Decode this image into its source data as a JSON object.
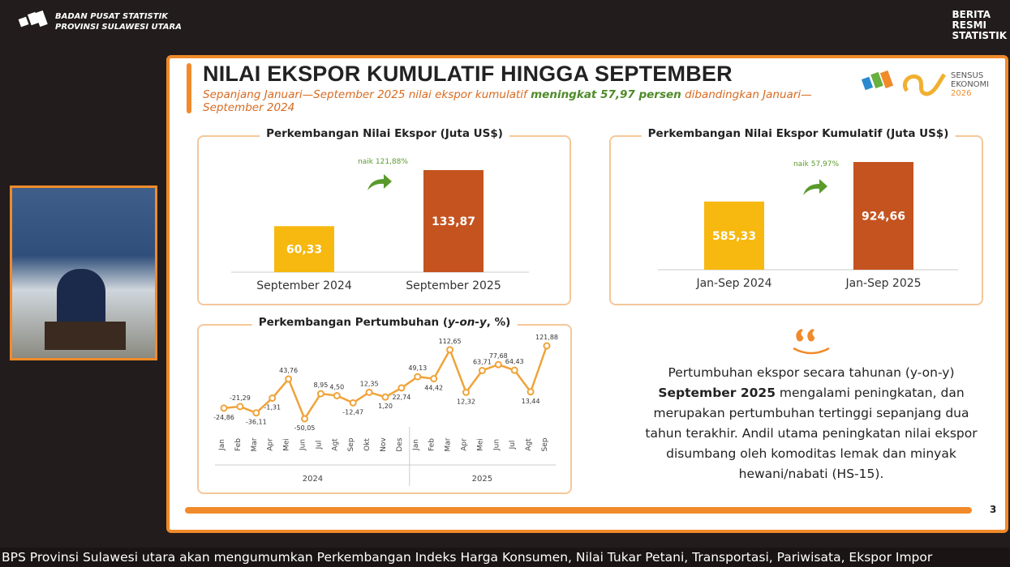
{
  "header": {
    "org": [
      "BADAN PUSAT STATISTIK",
      "PROVINSI SULAWESI UTARA"
    ],
    "brand": [
      "BERITA",
      "RESMI",
      "STATISTIK"
    ]
  },
  "slide": {
    "title": "NILAI EKSPOR KUMULATIF HINGGA SEPTEMBER",
    "subtitle": [
      "Sepanjang Januari—September 2025 nilai ekspor kumulatif",
      "meningkat 57,97 persen",
      "dibandingkan Januari—September 2024"
    ],
    "logo_text": [
      "SENSUS",
      "EKONOMI",
      "2026"
    ],
    "page_number": "3"
  },
  "charts": [
    {
      "type": "bar",
      "title": "Perkembangan Nilai Ekspor (Juta US$)",
      "categories": [
        "September 2024",
        "September 2025"
      ],
      "values": [
        60.33,
        133.87
      ],
      "value_labels": [
        "60,33",
        "133,87"
      ],
      "colors": [
        "#f7b80f",
        "#c4531f"
      ],
      "annotation": "naik 121,88%"
    },
    {
      "type": "bar",
      "title": "Perkembangan Nilai Ekspor Kumulatif (Juta US$)",
      "categories": [
        "Jan-Sep 2024",
        "Jan-Sep 2025"
      ],
      "values": [
        585.33,
        924.66
      ],
      "value_labels": [
        "585,33",
        "924,66"
      ],
      "colors": [
        "#f7b80f",
        "#c4531f"
      ],
      "annotation": "naik 57,97%"
    },
    {
      "type": "line",
      "title": [
        "Perkembangan Pertumbuhan (",
        "y-on-y",
        ", %)"
      ],
      "categories": [
        "Jan",
        "Feb",
        "Mar",
        "Apr",
        "Mei",
        "Jun",
        "Jul",
        "Agt",
        "Sep",
        "Okt",
        "Nov",
        "Des",
        "Jan",
        "Feb",
        "Mar",
        "Apr",
        "Mei",
        "Jun",
        "Jul",
        "Agt",
        "Sep"
      ],
      "years": [
        "2024",
        "2025"
      ],
      "values": [
        -24.86,
        -21.29,
        -36.11,
        -1.31,
        43.76,
        -50.05,
        8.95,
        4.5,
        -12.47,
        12.35,
        1.2,
        22.74,
        49.13,
        44.42,
        112.65,
        12.32,
        63.71,
        77.68,
        64.43,
        13.44,
        121.88
      ],
      "value_labels": [
        "-24,86",
        "-21,29",
        "-36,11",
        "-1,31",
        "43,76",
        "-50,05",
        "8,95",
        "4,50",
        "-12,47",
        "12,35",
        "1,20",
        "22,74",
        "49,13",
        "44,42",
        "112,65",
        "12,32",
        "63,71",
        "77,68",
        "64,43",
        "13,44",
        "121,88"
      ],
      "color": "#f0a33a"
    }
  ],
  "quote": [
    "Pertumbuhan ekspor secara tahunan (y-on-y)",
    "September 2025",
    "mengalami peningkatan, dan merupakan pertumbuhan tertinggi sepanjang dua tahun terakhir.  Andil utama peningkatan nilai ekspor disumbang oleh komoditas lemak dan minyak hewani/nabati (HS-15)."
  ],
  "ticker": "BPS Provinsi Sulawesi utara akan mengumumkan Perkembangan Indeks Harga Konsumen, Nilai Tukar Petani, Transportasi, Pariwisata, Ekspor Impor"
}
